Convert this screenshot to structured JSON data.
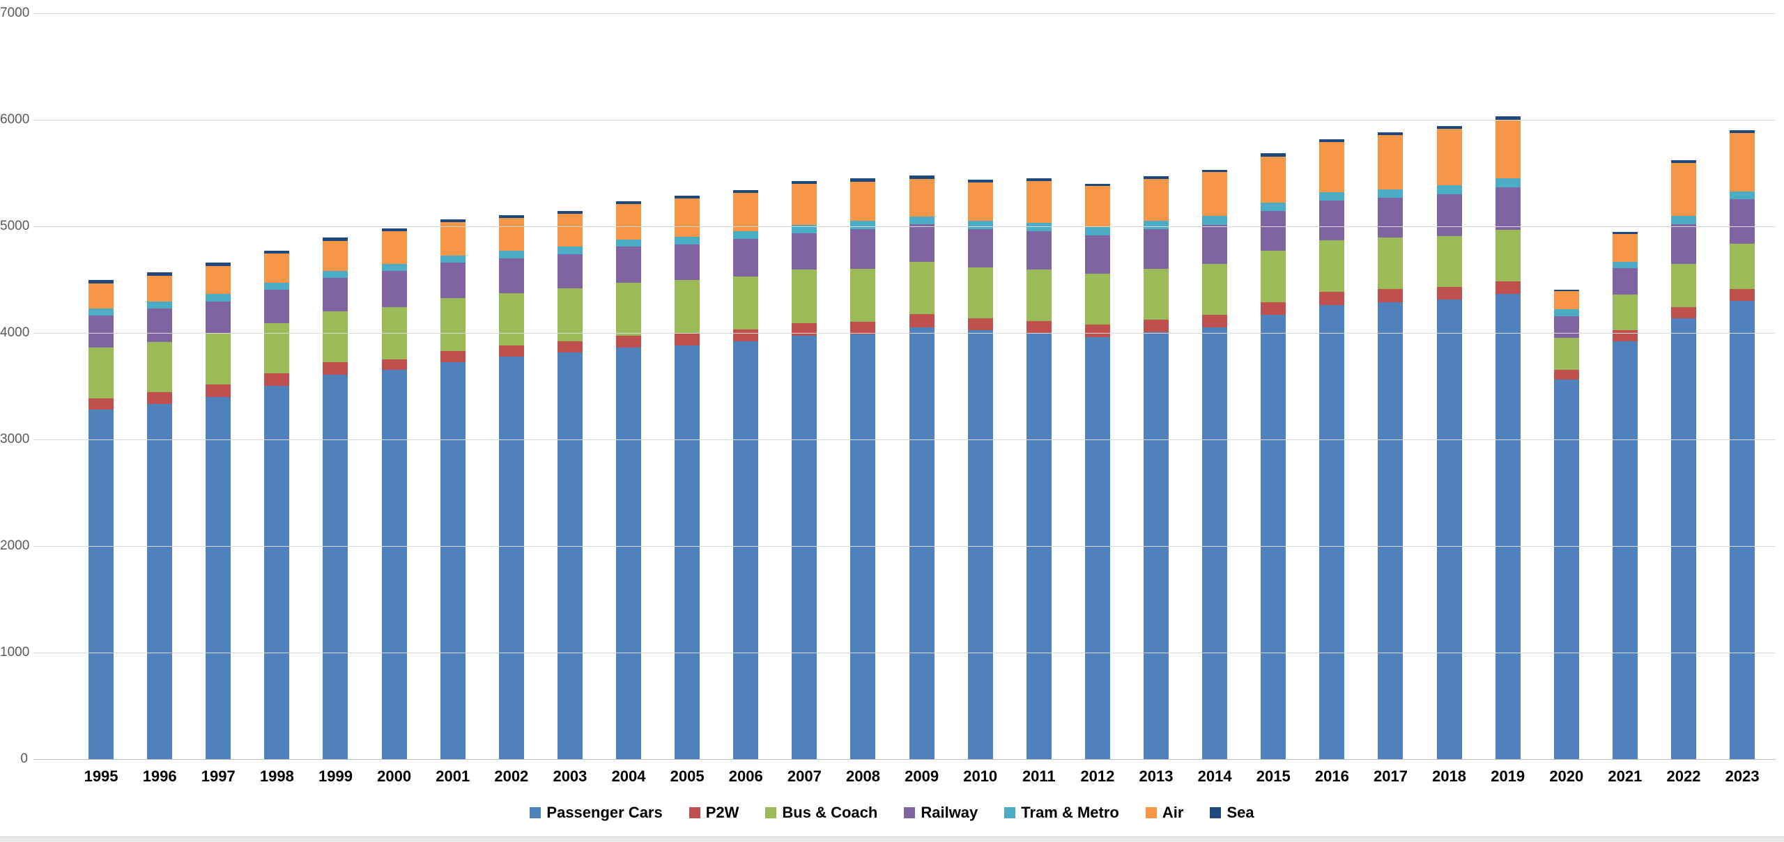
{
  "page": {
    "background": "#FFFFFF"
  },
  "chart_data": {
    "type": "bar",
    "stacked": true,
    "title": "",
    "xlabel": "",
    "ylabel": "",
    "ylim": [
      0,
      7000
    ],
    "ytick_step": 1000,
    "yticks": [
      "0",
      "1000",
      "2000",
      "3000",
      "4000",
      "5000",
      "6000",
      "7000"
    ],
    "grid": true,
    "legend_position": "bottom",
    "gridline_color": "#D9D9D9",
    "axis_line_color": "#BFBFBF",
    "tick_label_color": "#595959",
    "categories": [
      "1995",
      "1996",
      "1997",
      "1998",
      "1999",
      "2000",
      "2001",
      "2002",
      "2003",
      "2004",
      "2005",
      "2006",
      "2007",
      "2008",
      "2009",
      "2010",
      "2011",
      "2012",
      "2013",
      "2014",
      "2015",
      "2016",
      "2017",
      "2018",
      "2019",
      "2020",
      "2021",
      "2022",
      "2023"
    ],
    "series": [
      {
        "name": "Passenger Cars",
        "color": "#4F81BD",
        "values": [
          3280,
          3335,
          3400,
          3505,
          3610,
          3655,
          3723,
          3778,
          3815,
          3865,
          3880,
          3919,
          3973,
          3985,
          4054,
          4024,
          3995,
          3960,
          4010,
          4050,
          4170,
          4265,
          4290,
          4315,
          4365,
          3560,
          3925,
          4135,
          4300
        ]
      },
      {
        "name": "P2W",
        "color": "#C0504D",
        "values": [
          105,
          108,
          118,
          113,
          115,
          100,
          109,
          102,
          109,
          108,
          115,
          113,
          120,
          119,
          120,
          113,
          116,
          118,
          116,
          120,
          117,
          118,
          120,
          118,
          120,
          95,
          100,
          105,
          110
        ]
      },
      {
        "name": "Bus & Coach",
        "color": "#9BBB59",
        "values": [
          478,
          475,
          474,
          475,
          479,
          490,
          494,
          490,
          496,
          500,
          500,
          496,
          500,
          500,
          490,
          479,
          483,
          479,
          479,
          479,
          485,
          487,
          485,
          478,
          485,
          300,
          335,
          410,
          425
        ]
      },
      {
        "name": "Railway",
        "color": "#8064A2",
        "values": [
          304,
          309,
          305,
          309,
          311,
          335,
          333,
          333,
          320,
          335,
          337,
          352,
          342,
          370,
          354,
          359,
          363,
          359,
          370,
          366,
          370,
          374,
          372,
          390,
          395,
          205,
          245,
          370,
          420
        ]
      },
      {
        "name": "Tram & Metro",
        "color": "#4BACC6",
        "values": [
          63,
          68,
          70,
          66,
          70,
          66,
          65,
          70,
          73,
          69,
          72,
          72,
          75,
          78,
          76,
          77,
          74,
          78,
          80,
          80,
          78,
          80,
          80,
          82,
          85,
          60,
          60,
          75,
          70
        ]
      },
      {
        "name": "Air",
        "color": "#F79646",
        "values": [
          236,
          244,
          263,
          274,
          279,
          309,
          316,
          305,
          305,
          333,
          359,
          359,
          386,
          367,
          350,
          359,
          392,
          383,
          390,
          413,
          435,
          469,
          512,
          530,
          550,
          170,
          260,
          500,
          550
        ]
      },
      {
        "name": "Sea",
        "color": "#1F497D",
        "values": [
          30,
          33,
          31,
          31,
          33,
          28,
          26,
          28,
          28,
          26,
          26,
          27,
          29,
          30,
          30,
          26,
          26,
          23,
          26,
          24,
          29,
          26,
          26,
          31,
          33,
          15,
          20,
          25,
          25
        ]
      }
    ]
  }
}
